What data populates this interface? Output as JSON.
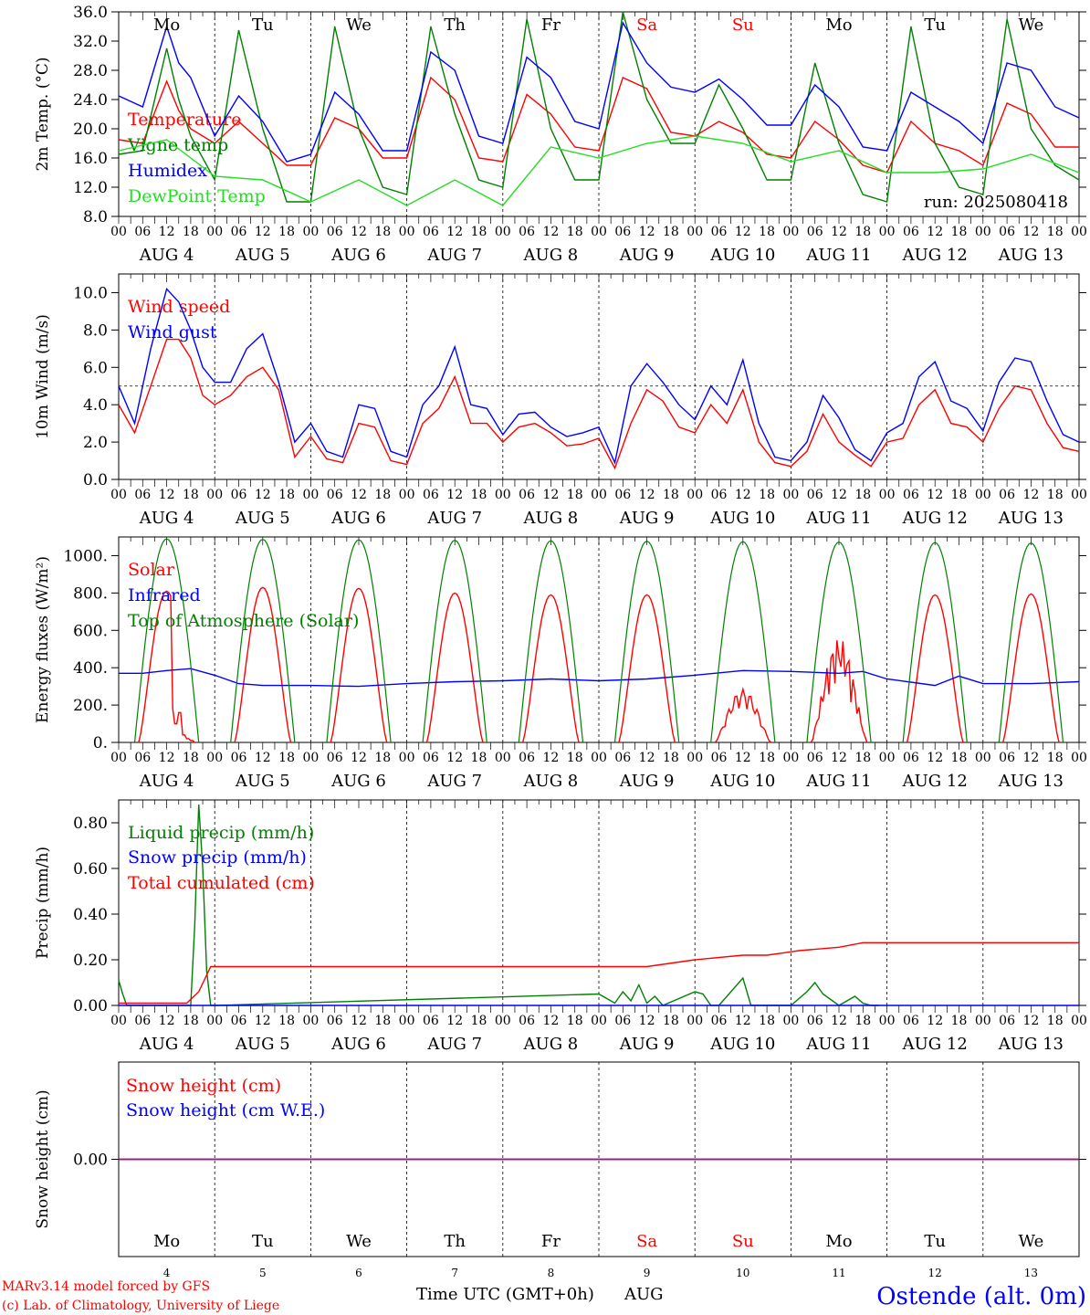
{
  "colors": {
    "red": "#ff0000",
    "green": "#008000",
    "blue": "#0000ff",
    "lightgreen": "#22dd22",
    "weekend": "#ff0000",
    "weekday": "#000000"
  },
  "footer": {
    "model": "MARv3.14 model forced by GFS",
    "copyright": "(c) Lab. of Climatology, University of Liege",
    "xtitle": "Time UTC (GMT+0h)",
    "month": "AUG",
    "station": "Ostende (alt. 0m)"
  },
  "days": [
    {
      "dow": "Mo",
      "date": "AUG  4",
      "num": "4",
      "weekend": false
    },
    {
      "dow": "Tu",
      "date": "AUG  5",
      "num": "5",
      "weekend": false
    },
    {
      "dow": "We",
      "date": "AUG  6",
      "num": "6",
      "weekend": false
    },
    {
      "dow": "Th",
      "date": "AUG  7",
      "num": "7",
      "weekend": false
    },
    {
      "dow": "Fr",
      "date": "AUG  8",
      "num": "8",
      "weekend": false
    },
    {
      "dow": "Sa",
      "date": "AUG  9",
      "num": "9",
      "weekend": true
    },
    {
      "dow": "Su",
      "date": "AUG 10",
      "num": "10",
      "weekend": true
    },
    {
      "dow": "Mo",
      "date": "AUG 11",
      "num": "11",
      "weekend": false
    },
    {
      "dow": "Tu",
      "date": "AUG 12",
      "num": "12",
      "weekend": false
    },
    {
      "dow": "We",
      "date": "AUG 13",
      "num": "13",
      "weekend": false
    }
  ],
  "hour_ticks": [
    "00",
    "06",
    "12",
    "18"
  ],
  "chart_data": [
    {
      "type": "line",
      "ylabel": "2m Temp. (°C)",
      "ylim": [
        8,
        36
      ],
      "yticks": [
        "8.0",
        "12.0",
        "16.0",
        "20.0",
        "24.0",
        "28.0",
        "32.0",
        "36.0"
      ],
      "annotation": "run: 2025080418",
      "x_hours_from": "AUG 4 00 UTC",
      "series": [
        {
          "name": "Temperature",
          "color": "red",
          "x": [
            0,
            6,
            12,
            15,
            18,
            24,
            30,
            36,
            42,
            48,
            54,
            60,
            66,
            72,
            78,
            84,
            90,
            96,
            102,
            108,
            114,
            120,
            126,
            132,
            138,
            144,
            150,
            156,
            162,
            168,
            174,
            180,
            186,
            192,
            198,
            204,
            210,
            216,
            222,
            228,
            234,
            240
          ],
          "values": [
            18.5,
            18,
            26.5,
            22.5,
            20,
            18,
            21,
            18,
            15,
            15,
            21.5,
            20,
            16,
            16,
            27,
            24,
            16,
            15.5,
            24.7,
            22,
            17.5,
            17,
            27,
            25.5,
            19.5,
            19,
            21,
            19.5,
            16.5,
            16,
            21,
            18.5,
            15,
            14,
            21,
            18,
            17,
            15,
            23.5,
            22,
            17.5,
            17.5
          ]
        },
        {
          "name": "Vigne temp",
          "color": "green",
          "x": [
            0,
            6,
            12,
            15,
            18,
            24,
            30,
            36,
            42,
            48,
            54,
            60,
            66,
            72,
            78,
            84,
            90,
            96,
            102,
            108,
            114,
            120,
            126,
            132,
            138,
            144,
            150,
            156,
            162,
            168,
            174,
            180,
            186,
            192,
            198,
            204,
            210,
            216,
            222,
            228,
            234,
            240
          ],
          "values": [
            16.5,
            17,
            31,
            24,
            19,
            13,
            33.5,
            20,
            10,
            10,
            34,
            20,
            12,
            11,
            34,
            22,
            13,
            12,
            35,
            20,
            13,
            13,
            36,
            24,
            18,
            18,
            26,
            20,
            13,
            13,
            29,
            18,
            11,
            10,
            34,
            18,
            12,
            11,
            35,
            20,
            15,
            13
          ]
        },
        {
          "name": "Humidex",
          "color": "blue",
          "x": [
            0,
            6,
            12,
            15,
            18,
            24,
            30,
            36,
            42,
            48,
            54,
            60,
            66,
            72,
            78,
            84,
            90,
            96,
            102,
            108,
            114,
            120,
            126,
            132,
            138,
            144,
            150,
            156,
            162,
            168,
            174,
            180,
            186,
            192,
            198,
            204,
            210,
            216,
            222,
            228,
            234,
            240
          ],
          "values": [
            24.5,
            23,
            34,
            29,
            27,
            19,
            24.5,
            21,
            15.5,
            16.5,
            25,
            22,
            17,
            17,
            30.5,
            28,
            19,
            18,
            29.8,
            27,
            21,
            20,
            34.5,
            29,
            25.7,
            25,
            26.8,
            24,
            20.5,
            20.5,
            26,
            23,
            17.5,
            17,
            25,
            23,
            21,
            18,
            29,
            28,
            23,
            21.5
          ]
        },
        {
          "name": "DewPoint Temp",
          "color": "lightgreen",
          "x": [
            0,
            12,
            24,
            36,
            48,
            60,
            72,
            84,
            96,
            108,
            120,
            132,
            144,
            156,
            168,
            180,
            192,
            204,
            216,
            228,
            240
          ],
          "values": [
            17,
            18.5,
            13.5,
            13,
            10,
            13,
            9.5,
            13,
            9.5,
            17.5,
            16,
            18,
            19,
            18,
            15.5,
            17,
            14,
            14,
            14.5,
            16.5,
            14
          ]
        }
      ]
    },
    {
      "type": "line",
      "ylabel": "10m Wind (m/s)",
      "ylim": [
        0,
        11
      ],
      "yticks": [
        "0.0",
        "2.0",
        "4.0",
        "6.0",
        "8.0",
        "10.0"
      ],
      "reference_line": 5,
      "x_hours_from": "AUG 4 00 UTC",
      "series": [
        {
          "name": "Wind speed",
          "color": "red",
          "x": [
            0,
            4,
            8,
            12,
            15,
            18,
            21,
            24,
            28,
            32,
            36,
            40,
            44,
            48,
            52,
            56,
            60,
            64,
            68,
            72,
            76,
            80,
            84,
            88,
            92,
            96,
            100,
            104,
            108,
            112,
            116,
            120,
            124,
            128,
            132,
            136,
            140,
            144,
            148,
            152,
            156,
            160,
            164,
            168,
            172,
            176,
            180,
            184,
            188,
            192,
            196,
            200,
            204,
            208,
            212,
            216,
            220,
            224,
            228,
            232,
            236,
            240
          ],
          "values": [
            4,
            2.5,
            5,
            7.5,
            7.5,
            6.5,
            4.5,
            4,
            4.5,
            5.5,
            6,
            4.8,
            1.2,
            2.3,
            1.1,
            0.9,
            3,
            2.8,
            1,
            0.8,
            3,
            3.8,
            5.5,
            3,
            3,
            2,
            2.8,
            3,
            2.5,
            1.8,
            1.9,
            2.2,
            0.6,
            3,
            4.8,
            4.2,
            2.8,
            2.5,
            4,
            3,
            4.8,
            2,
            0.9,
            0.7,
            1.5,
            3.5,
            2,
            1.3,
            0.7,
            2,
            2.2,
            4,
            4.8,
            3,
            2.8,
            2,
            3.8,
            5,
            4.8,
            3,
            1.7,
            1.5
          ]
        },
        {
          "name": "Wind gust",
          "color": "blue",
          "x": [
            0,
            4,
            8,
            12,
            15,
            18,
            21,
            24,
            28,
            32,
            36,
            40,
            44,
            48,
            52,
            56,
            60,
            64,
            68,
            72,
            76,
            80,
            84,
            88,
            92,
            96,
            100,
            104,
            108,
            112,
            116,
            120,
            124,
            128,
            132,
            136,
            140,
            144,
            148,
            152,
            156,
            160,
            164,
            168,
            172,
            176,
            180,
            184,
            188,
            192,
            196,
            200,
            204,
            208,
            212,
            216,
            220,
            224,
            228,
            232,
            236,
            240
          ],
          "values": [
            5,
            3,
            7,
            10.2,
            9.5,
            8,
            6,
            5.2,
            5.2,
            7,
            7.8,
            5.2,
            2,
            3,
            1.5,
            1.2,
            4,
            3.8,
            1.5,
            1.2,
            4,
            5,
            7.1,
            4,
            3.8,
            2.4,
            3.5,
            3.6,
            2.8,
            2.3,
            2.5,
            2.8,
            0.9,
            5,
            6.2,
            5.2,
            4,
            3.2,
            5,
            4,
            6.4,
            3,
            1.2,
            1,
            2,
            4.5,
            3.3,
            1.6,
            1,
            2.5,
            3,
            5.5,
            6.3,
            4.2,
            3.8,
            2.6,
            5.2,
            6.5,
            6.3,
            4.2,
            2.4,
            2
          ]
        }
      ]
    },
    {
      "type": "line",
      "ylabel": "Energy fluxes (W/m²)",
      "ylim": [
        0,
        1100
      ],
      "yticks": [
        "0.",
        "200.",
        "400.",
        "600.",
        "800.",
        "1000."
      ],
      "x_hours_from": "AUG 4 00 UTC",
      "series": [
        {
          "name": "Solar",
          "color": "red",
          "peaks": [
            810,
            830,
            825,
            800,
            790,
            790,
            285,
            560,
            790,
            795
          ],
          "note": "daily daylight curve 04-20 UTC; day 1 peak at 12 then drops to 100-180, day 7 max 285, day 8 spiky max 560"
        },
        {
          "name": "Infrared",
          "color": "blue",
          "x": [
            0,
            6,
            12,
            18,
            24,
            30,
            36,
            48,
            60,
            72,
            84,
            96,
            108,
            120,
            132,
            144,
            156,
            168,
            180,
            186,
            192,
            204,
            210,
            216,
            228,
            240
          ],
          "values": [
            370,
            370,
            385,
            395,
            360,
            315,
            305,
            305,
            300,
            315,
            325,
            330,
            340,
            330,
            340,
            360,
            385,
            380,
            370,
            380,
            340,
            305,
            355,
            315,
            315,
            325
          ]
        },
        {
          "name": "Top of Atmosphere (Solar)",
          "color": "green",
          "peak": 1090,
          "note": "daily bell 04-20 UTC, peak ~1090 decreasing slightly to 1065"
        }
      ]
    },
    {
      "type": "line",
      "ylabel": "Precip (mm/h)",
      "ylim": [
        0,
        0.9
      ],
      "yticks": [
        "0.00",
        "0.20",
        "0.40",
        "0.60",
        "0.80"
      ],
      "x_hours_from": "AUG 4 00 UTC",
      "series": [
        {
          "name": "Liquid precip (mm/h)",
          "color": "green",
          "x": [
            0,
            1,
            2,
            18,
            19,
            20,
            21,
            22,
            23,
            24,
            120,
            124,
            126,
            128,
            130,
            132,
            134,
            136,
            144,
            146,
            148,
            150,
            156,
            158,
            160,
            162,
            168,
            172,
            174,
            176,
            180,
            184,
            186,
            188,
            190
          ],
          "values": [
            0.11,
            0.05,
            0,
            0,
            0.35,
            0.88,
            0.6,
            0.15,
            0,
            0,
            0.05,
            0.01,
            0.06,
            0.02,
            0.09,
            0.01,
            0.04,
            0,
            0.06,
            0.05,
            0,
            0,
            0.12,
            0,
            0,
            0,
            0,
            0.06,
            0.1,
            0.05,
            0,
            0.04,
            0.01,
            0,
            0
          ]
        },
        {
          "name": "Snow precip (mm/h)",
          "color": "blue",
          "x": [
            0,
            240
          ],
          "values": [
            0,
            0
          ]
        },
        {
          "name": "Total cumulated (cm)",
          "color": "red",
          "x": [
            0,
            17,
            20,
            23,
            24,
            132,
            136,
            144,
            156,
            162,
            168,
            170,
            180,
            186,
            240
          ],
          "values": [
            0.01,
            0.01,
            0.06,
            0.17,
            0.17,
            0.17,
            0.18,
            0.2,
            0.22,
            0.22,
            0.235,
            0.24,
            0.255,
            0.275,
            0.275
          ]
        }
      ]
    },
    {
      "type": "line",
      "ylabel": "Snow height (cm)",
      "yticks": [
        "0.00"
      ],
      "series": [
        {
          "name": "Snow height (cm)",
          "color": "red",
          "x": [
            0,
            240
          ],
          "values": [
            0,
            0
          ]
        },
        {
          "name": "Snow height (cm W.E.)",
          "color": "blue",
          "x": [
            0,
            240
          ],
          "values": [
            0,
            0
          ]
        }
      ]
    }
  ]
}
